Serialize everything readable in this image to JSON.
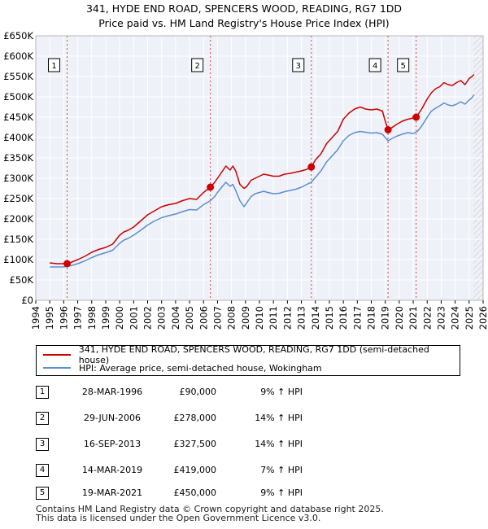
{
  "chart_data": {
    "type": "line",
    "title": "341, HYDE END ROAD, SPENCERS WOOD, READING, RG7 1DD",
    "subtitle": "Price paid vs. HM Land Registry's House Price Index (HPI)",
    "xlabel": "",
    "ylabel": "",
    "xlim": [
      1994,
      2026
    ],
    "ylim": [
      0,
      650000
    ],
    "x_ticks": [
      "1994",
      "1995",
      "1996",
      "1997",
      "1998",
      "1999",
      "2000",
      "2001",
      "2002",
      "2003",
      "2004",
      "2005",
      "2006",
      "2007",
      "2008",
      "2009",
      "2010",
      "2011",
      "2012",
      "2013",
      "2014",
      "2015",
      "2016",
      "2017",
      "2018",
      "2019",
      "2020",
      "2021",
      "2022",
      "2023",
      "2024",
      "2025",
      "2026"
    ],
    "y_ticks": [
      "£0",
      "£50K",
      "£100K",
      "£150K",
      "£200K",
      "£250K",
      "£300K",
      "£350K",
      "£400K",
      "£450K",
      "£500K",
      "£550K",
      "£600K",
      "£650K"
    ],
    "y_tick_values": [
      0,
      50000,
      100000,
      150000,
      200000,
      250000,
      300000,
      350000,
      400000,
      450000,
      500000,
      550000,
      600000,
      650000
    ],
    "series": [
      {
        "name": "341, HYDE END ROAD, SPENCERS WOOD, READING, RG7 1DD (semi-detached house)",
        "color": "#cc0000",
        "x": [
          1995.0,
          1995.5,
          1996.0,
          1996.24,
          1996.5,
          1997.0,
          1997.5,
          1998.0,
          1998.5,
          1999.0,
          1999.5,
          2000.0,
          2000.3,
          2000.6,
          2001.0,
          2001.5,
          2002.0,
          2002.5,
          2003.0,
          2003.5,
          2004.0,
          2004.5,
          2005.0,
          2005.5,
          2006.0,
          2006.49,
          2006.8,
          2007.0,
          2007.3,
          2007.6,
          2007.9,
          2008.1,
          2008.3,
          2008.6,
          2008.9,
          2009.1,
          2009.4,
          2009.7,
          2010.0,
          2010.3,
          2010.6,
          2011.0,
          2011.4,
          2011.8,
          2012.2,
          2012.6,
          2013.0,
          2013.4,
          2013.71,
          2014.0,
          2014.4,
          2014.8,
          2015.2,
          2015.6,
          2016.0,
          2016.4,
          2016.8,
          2017.2,
          2017.6,
          2018.0,
          2018.4,
          2018.8,
          2019.0,
          2019.2,
          2019.5,
          2019.8,
          2020.2,
          2020.6,
          2021.0,
          2021.21,
          2021.6,
          2022.0,
          2022.3,
          2022.6,
          2022.9,
          2023.2,
          2023.5,
          2023.8,
          2024.1,
          2024.4,
          2024.7,
          2025.0,
          2025.2,
          2025.35
        ],
        "values": [
          92000,
          90000,
          90000,
          90000,
          93000,
          100000,
          108000,
          118000,
          125000,
          130000,
          138000,
          160000,
          168000,
          172000,
          180000,
          195000,
          210000,
          220000,
          230000,
          235000,
          238000,
          245000,
          250000,
          248000,
          265000,
          278000,
          290000,
          300000,
          315000,
          330000,
          320000,
          330000,
          318000,
          285000,
          275000,
          280000,
          295000,
          300000,
          305000,
          310000,
          308000,
          305000,
          305000,
          310000,
          312000,
          315000,
          318000,
          322000,
          327500,
          345000,
          360000,
          385000,
          400000,
          415000,
          445000,
          460000,
          470000,
          475000,
          470000,
          468000,
          470000,
          465000,
          440000,
          419000,
          425000,
          432000,
          440000,
          445000,
          448000,
          450000,
          470000,
          495000,
          510000,
          520000,
          525000,
          535000,
          530000,
          528000,
          535000,
          540000,
          530000,
          545000,
          550000,
          555000
        ]
      },
      {
        "name": "HPI: Average price, semi-detached house, Wokingham",
        "color": "#5b8fcf",
        "x": [
          1995.0,
          1995.5,
          1996.0,
          1996.5,
          1997.0,
          1997.5,
          1998.0,
          1998.5,
          1999.0,
          1999.5,
          2000.0,
          2000.3,
          2000.6,
          2001.0,
          2001.5,
          2002.0,
          2002.5,
          2003.0,
          2003.5,
          2004.0,
          2004.5,
          2005.0,
          2005.5,
          2006.0,
          2006.5,
          2006.8,
          2007.0,
          2007.3,
          2007.6,
          2007.9,
          2008.1,
          2008.3,
          2008.6,
          2008.9,
          2009.1,
          2009.4,
          2009.7,
          2010.0,
          2010.3,
          2010.6,
          2011.0,
          2011.4,
          2011.8,
          2012.2,
          2012.6,
          2013.0,
          2013.4,
          2013.7,
          2014.0,
          2014.4,
          2014.8,
          2015.2,
          2015.6,
          2016.0,
          2016.4,
          2016.8,
          2017.2,
          2017.6,
          2018.0,
          2018.4,
          2018.8,
          2019.0,
          2019.2,
          2019.5,
          2019.8,
          2020.2,
          2020.6,
          2021.0,
          2021.3,
          2021.6,
          2022.0,
          2022.3,
          2022.6,
          2022.9,
          2023.2,
          2023.5,
          2023.8,
          2024.1,
          2024.4,
          2024.7,
          2025.0,
          2025.2,
          2025.35
        ],
        "values": [
          82000,
          82000,
          82000,
          85000,
          90000,
          97000,
          105000,
          112000,
          117000,
          123000,
          140000,
          148000,
          152000,
          160000,
          172000,
          185000,
          195000,
          203000,
          208000,
          212000,
          218000,
          223000,
          222000,
          235000,
          245000,
          255000,
          265000,
          278000,
          290000,
          280000,
          285000,
          270000,
          245000,
          230000,
          240000,
          255000,
          262000,
          265000,
          268000,
          265000,
          262000,
          263000,
          267000,
          270000,
          273000,
          278000,
          285000,
          290000,
          302000,
          318000,
          340000,
          355000,
          370000,
          392000,
          405000,
          412000,
          415000,
          413000,
          411000,
          412000,
          408000,
          400000,
          392000,
          398000,
          403000,
          408000,
          412000,
          410000,
          415000,
          428000,
          450000,
          465000,
          472000,
          478000,
          485000,
          480000,
          478000,
          482000,
          488000,
          482000,
          492000,
          498000,
          505000
        ]
      }
    ],
    "sale_points": [
      {
        "label": "1",
        "x": 1996.24,
        "value": 90000
      },
      {
        "label": "2",
        "x": 2006.49,
        "value": 278000
      },
      {
        "label": "3",
        "x": 2013.71,
        "value": 327500
      },
      {
        "label": "4",
        "x": 2019.2,
        "value": 419000
      },
      {
        "label": "5",
        "x": 2021.21,
        "value": 450000
      }
    ],
    "forecast_from": 2025.3
  },
  "legend": {
    "items": [
      {
        "label": "341, HYDE END ROAD, SPENCERS WOOD, READING, RG7 1DD (semi-detached house)",
        "color": "#cc0000"
      },
      {
        "label": "HPI: Average price, semi-detached house, Wokingham",
        "color": "#5b8fcf"
      }
    ]
  },
  "sales": [
    {
      "num": "1",
      "date": "28-MAR-1996",
      "price": "£90,000",
      "hpi": "9% ↑ HPI"
    },
    {
      "num": "2",
      "date": "29-JUN-2006",
      "price": "£278,000",
      "hpi": "14% ↑ HPI"
    },
    {
      "num": "3",
      "date": "16-SEP-2013",
      "price": "£327,500",
      "hpi": "14% ↑ HPI"
    },
    {
      "num": "4",
      "date": "14-MAR-2019",
      "price": "£419,000",
      "hpi": "7% ↑ HPI"
    },
    {
      "num": "5",
      "date": "19-MAR-2021",
      "price": "£450,000",
      "hpi": "9% ↑ HPI"
    }
  ],
  "footer": {
    "line1": "Contains HM Land Registry data © Crown copyright and database right 2025.",
    "line2": "This data is licensed under the Open Government Licence v3.0."
  }
}
